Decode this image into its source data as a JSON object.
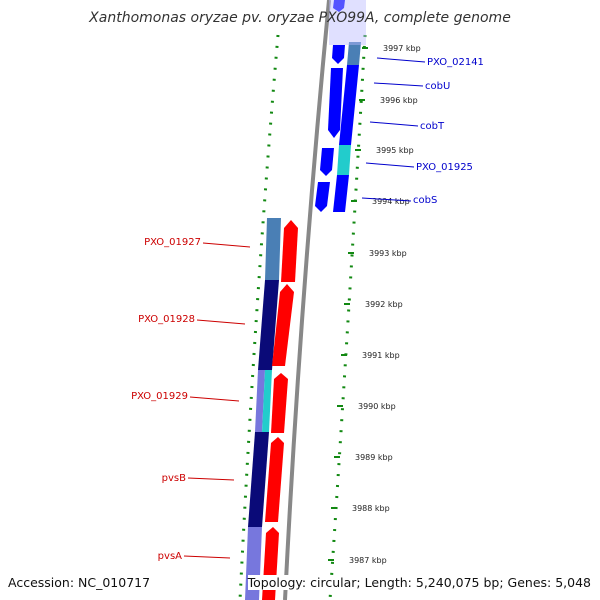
{
  "title": "Xanthomonas oryzae pv. oryzae PXO99A, complete genome",
  "footer": {
    "accession": "Accession: NC_010717",
    "topology": "Topology: circular; Length: 5,240,075 bp; Genes: 5,048"
  },
  "colors": {
    "forward_strand": "#ff0000",
    "reverse_strand": "#0000ff",
    "backbone": "#888888",
    "tick_marks": "#118811",
    "label_forward": "#cc0000",
    "label_reverse": "#0000cc",
    "shade_light_blue": "#4a7fb5",
    "shade_navy": "#0a0a78",
    "shade_cyan": "#22cccc",
    "shade_lavender": "#7777dd"
  },
  "ticks": [
    {
      "label": "3997 kbp"
    },
    {
      "label": "3996 kbp"
    },
    {
      "label": "3995 kbp"
    },
    {
      "label": "3994 kbp"
    },
    {
      "label": "3993 kbp"
    },
    {
      "label": "3992 kbp"
    },
    {
      "label": "3991 kbp"
    },
    {
      "label": "3990 kbp"
    },
    {
      "label": "3989 kbp"
    },
    {
      "label": "3988 kbp"
    },
    {
      "label": "3987 kbp"
    }
  ],
  "gene_labels": [
    {
      "text": "PXO_02141",
      "strand": "reverse"
    },
    {
      "text": "cobU",
      "strand": "reverse"
    },
    {
      "text": "cobT",
      "strand": "reverse"
    },
    {
      "text": "PXO_01925",
      "strand": "reverse"
    },
    {
      "text": "cobS",
      "strand": "reverse"
    },
    {
      "text": "PXO_01927",
      "strand": "forward"
    },
    {
      "text": "PXO_01928",
      "strand": "forward"
    },
    {
      "text": "PXO_01929",
      "strand": "forward"
    },
    {
      "text": "pvsB",
      "strand": "forward"
    },
    {
      "text": "pvsA",
      "strand": "forward"
    }
  ]
}
